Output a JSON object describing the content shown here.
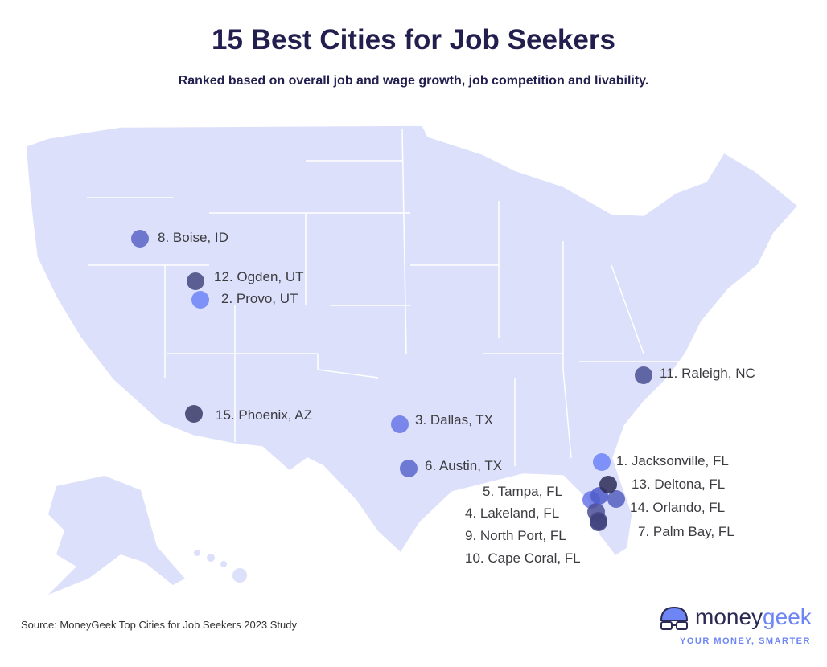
{
  "title": "15 Best Cities for Job Seekers",
  "subtitle": "Ranked based on overall job and wage growth, job competition and livability.",
  "source": "Source: MoneyGeek Top Cities for Job Seekers 2023 Study",
  "logo": {
    "word_a": "money",
    "word_b": "geek",
    "tagline": "YOUR MONEY, SMARTER"
  },
  "colors": {
    "map_fill": "#dde0fb",
    "state_border": "#ffffff",
    "title": "#221f4f",
    "brand": "#6e86f5"
  },
  "cities": [
    {
      "rank": 1,
      "label": "1. Jacksonville, FL",
      "color": "#6d83f7"
    },
    {
      "rank": 2,
      "label": "2. Provo, UT",
      "color": "#6d83f7"
    },
    {
      "rank": 3,
      "label": "3. Dallas, TX",
      "color": "#6877e6"
    },
    {
      "rank": 4,
      "label": "4. Lakeland, FL",
      "color": "#4c4f96"
    },
    {
      "rank": 5,
      "label": "5. Tampa, FL",
      "color": "#6877e6"
    },
    {
      "rank": 6,
      "label": "6. Austin, TX",
      "color": "#5a66cc"
    },
    {
      "rank": 7,
      "label": "7. Palm Bay, FL",
      "color": "#4f5cc9"
    },
    {
      "rank": 8,
      "label": "8. Boise, ID",
      "color": "#5a64c6"
    },
    {
      "rank": 9,
      "label": "9. North Port, FL",
      "color": "#45498a"
    },
    {
      "rank": 10,
      "label": "10. Cape Coral, FL",
      "color": "#3f427c"
    },
    {
      "rank": 11,
      "label": "11. Raleigh, NC",
      "color": "#4a4f94"
    },
    {
      "rank": 12,
      "label": "12. Ogden, UT",
      "color": "#44477f"
    },
    {
      "rank": 13,
      "label": "13. Deltona, FL",
      "color": "#2c2a55"
    },
    {
      "rank": 14,
      "label": "14. Orlando, FL",
      "color": "#5560c0"
    },
    {
      "rank": 15,
      "label": "15. Phoenix, AZ",
      "color": "#3a3966"
    }
  ]
}
